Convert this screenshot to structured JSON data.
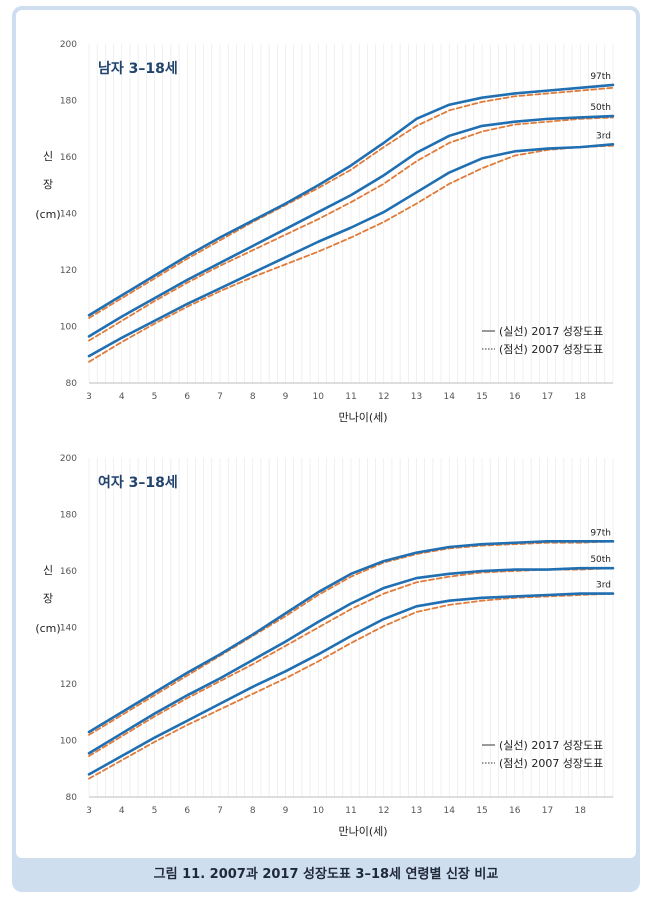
{
  "caption": "그림 11. 2007과 2017 성장도표 3–18세 연령별 신장 비교",
  "colors": {
    "series_2017": "#1f6fb2",
    "series_2007": "#e07b39",
    "grid": "#e6e6e6",
    "frame": "#cfdeef"
  },
  "legend": {
    "solid": "(실선) 2017 성장도표",
    "dashed": "(점선) 2007 성장도표"
  },
  "chart_data": [
    {
      "type": "line",
      "title": "남자 3–18세",
      "xlabel": "만나이(세)",
      "ylabel": [
        "신",
        "장",
        "(cm)"
      ],
      "xlim": [
        3,
        19
      ],
      "ylim": [
        80,
        200
      ],
      "xticks": [
        3,
        4,
        5,
        6,
        7,
        8,
        9,
        10,
        11,
        12,
        13,
        14,
        15,
        16,
        17,
        18
      ],
      "yticks": [
        80,
        100,
        120,
        140,
        160,
        180,
        200
      ],
      "grid": "vertical-minor",
      "legend_position": "bottom-right",
      "x": [
        3,
        4,
        5,
        6,
        7,
        8,
        9,
        10,
        11,
        12,
        13,
        14,
        15,
        16,
        17,
        18,
        19
      ],
      "series": [
        {
          "name": "97th",
          "year": "2017",
          "style": "solid",
          "values": [
            104,
            111,
            118,
            125,
            131.5,
            137.5,
            143.5,
            150,
            157,
            165,
            173.5,
            178.5,
            181,
            182.5,
            183.5,
            184.5,
            185.5
          ]
        },
        {
          "name": "97th",
          "year": "2007",
          "style": "dashed",
          "values": [
            103,
            110,
            117,
            124,
            130.5,
            137,
            143,
            149,
            155.5,
            163.5,
            171,
            176.5,
            179.5,
            181.5,
            182.5,
            183.5,
            184.5
          ]
        },
        {
          "name": "50th",
          "year": "2017",
          "style": "solid",
          "values": [
            96.5,
            103.5,
            110,
            116.5,
            122.5,
            128.5,
            134.5,
            140.5,
            146.5,
            153.5,
            161.5,
            167.5,
            171,
            172.5,
            173.5,
            174,
            174.5
          ]
        },
        {
          "name": "50th",
          "year": "2007",
          "style": "dashed",
          "values": [
            95,
            102,
            109,
            115.5,
            121.5,
            127,
            132.5,
            138,
            144,
            150.5,
            158.5,
            165,
            169,
            171.5,
            172.5,
            173.5,
            174
          ]
        },
        {
          "name": "3rd",
          "year": "2017",
          "style": "solid",
          "values": [
            89.5,
            96,
            102,
            108,
            113.5,
            119,
            124.5,
            130,
            135,
            140.5,
            147.5,
            154.5,
            159.5,
            162,
            163,
            163.5,
            164.5
          ]
        },
        {
          "name": "3rd",
          "year": "2007",
          "style": "dashed",
          "values": [
            87.5,
            94.5,
            101,
            107,
            112.5,
            117.5,
            122,
            126.5,
            131.5,
            137,
            143.5,
            150.5,
            156,
            160.5,
            162.5,
            163.5,
            164
          ]
        }
      ]
    },
    {
      "type": "line",
      "title": "여자 3–18세",
      "xlabel": "만나이(세)",
      "ylabel": [
        "신",
        "장",
        "(cm)"
      ],
      "xlim": [
        3,
        19
      ],
      "ylim": [
        80,
        200
      ],
      "xticks": [
        3,
        4,
        5,
        6,
        7,
        8,
        9,
        10,
        11,
        12,
        13,
        14,
        15,
        16,
        17,
        18
      ],
      "yticks": [
        80,
        100,
        120,
        140,
        160,
        180,
        200
      ],
      "grid": "vertical-minor",
      "legend_position": "bottom-right",
      "x": [
        3,
        4,
        5,
        6,
        7,
        8,
        9,
        10,
        11,
        12,
        13,
        14,
        15,
        16,
        17,
        18,
        19
      ],
      "series": [
        {
          "name": "97th",
          "year": "2017",
          "style": "solid",
          "values": [
            103,
            110,
            117,
            124,
            130.5,
            137.5,
            145,
            152.5,
            159,
            163.5,
            166.5,
            168.5,
            169.5,
            170,
            170.5,
            170.5,
            170.5
          ]
        },
        {
          "name": "97th",
          "year": "2007",
          "style": "dashed",
          "values": [
            102,
            109,
            116,
            123,
            130,
            137,
            144,
            151.5,
            158,
            163,
            166,
            168,
            169,
            169.5,
            170,
            170,
            170.5
          ]
        },
        {
          "name": "50th",
          "year": "2017",
          "style": "solid",
          "values": [
            95.5,
            102.5,
            109.5,
            116,
            122,
            128.5,
            135,
            142,
            148.5,
            154,
            157.5,
            159,
            160,
            160.5,
            160.5,
            161,
            161
          ]
        },
        {
          "name": "50th",
          "year": "2007",
          "style": "dashed",
          "values": [
            94.5,
            101.5,
            108.5,
            115,
            121,
            127,
            133.5,
            140,
            146.5,
            152,
            156,
            158,
            159.5,
            160,
            160.5,
            160.5,
            161
          ]
        },
        {
          "name": "3rd",
          "year": "2017",
          "style": "solid",
          "values": [
            88,
            94.5,
            101,
            107,
            113,
            119,
            124.5,
            130.5,
            137,
            143,
            147.5,
            149.5,
            150.5,
            151,
            151.5,
            152,
            152
          ]
        },
        {
          "name": "3rd",
          "year": "2007",
          "style": "dashed",
          "values": [
            86.5,
            93,
            99.5,
            105.5,
            111,
            116.5,
            122,
            128,
            134.5,
            140.5,
            145.5,
            148,
            149.5,
            150.5,
            151,
            151.5,
            152
          ]
        }
      ]
    }
  ]
}
